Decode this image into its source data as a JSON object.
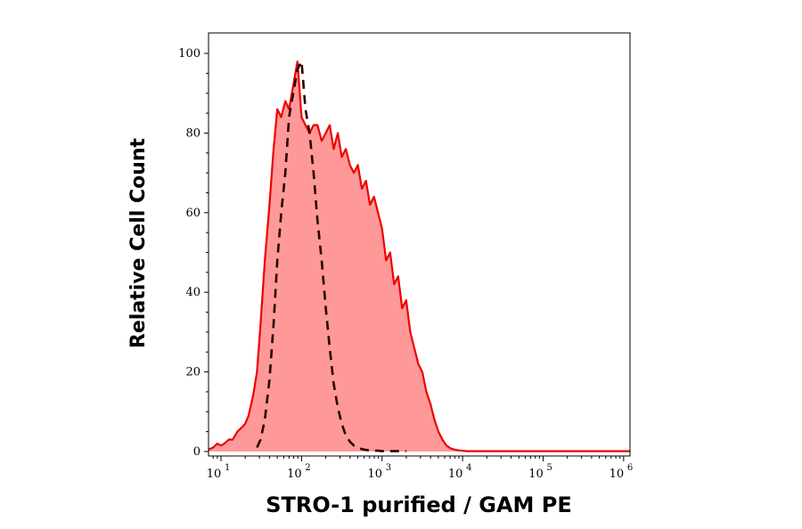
{
  "chart_data": {
    "type": "area",
    "xlabel": "STRO-1 purified / GAM PE",
    "ylabel": "Relative Cell Count",
    "x_scale": "log",
    "xlim": [
      7,
      1200000
    ],
    "ylim": [
      0,
      105
    ],
    "x_ticks": [
      {
        "value": 10,
        "base": "10",
        "exp": "1"
      },
      {
        "value": 100,
        "base": "10",
        "exp": "2"
      },
      {
        "value": 1000,
        "base": "10",
        "exp": "3"
      },
      {
        "value": 10000,
        "base": "10",
        "exp": "4"
      },
      {
        "value": 100000,
        "base": "10",
        "exp": "5"
      },
      {
        "value": 1000000,
        "base": "10",
        "exp": "6"
      }
    ],
    "y_ticks": [
      0,
      20,
      40,
      60,
      80,
      100
    ],
    "grid": false,
    "series": [
      {
        "style": "filled solid",
        "color": "#ee0000",
        "fill": "#ff9999",
        "x": [
          7,
          8,
          9,
          10,
          11,
          12.5,
          14,
          16,
          18,
          20,
          22,
          25,
          28,
          31,
          35,
          40,
          45,
          50,
          56,
          63,
          70,
          79,
          89,
          100,
          112,
          126,
          141,
          158,
          178,
          200,
          224,
          251,
          282,
          316,
          355,
          398,
          447,
          501,
          562,
          631,
          708,
          794,
          891,
          1000,
          1122,
          1259,
          1413,
          1585,
          1778,
          1995,
          2239,
          2512,
          2818,
          3162,
          3548,
          3981,
          4467,
          5012,
          5623,
          6310,
          7079,
          7943,
          8913,
          10000,
          11220,
          12589,
          15000,
          20000,
          50000,
          100000,
          500000,
          1000000,
          1200000
        ],
        "y": [
          0.5,
          1,
          2,
          1.5,
          2,
          3,
          3,
          5,
          6,
          7,
          9,
          14,
          20,
          32,
          48,
          62,
          76,
          86,
          84,
          88,
          86,
          92,
          98,
          84,
          82,
          80,
          82,
          82,
          78,
          80,
          82,
          76,
          80,
          74,
          76,
          72,
          70,
          72,
          66,
          68,
          62,
          64,
          60,
          56,
          48,
          50,
          42,
          44,
          36,
          38,
          30,
          26,
          22,
          20,
          15,
          12,
          8,
          5,
          3,
          1.5,
          0.8,
          0.5,
          0.3,
          0.2,
          0.1,
          0.1,
          0.1,
          0.1,
          0.1,
          0.1,
          0.1,
          0.1,
          0.1
        ]
      },
      {
        "style": "dashed",
        "color": "#2a0000",
        "x": [
          28,
          31,
          35,
          40,
          45,
          50,
          56,
          63,
          70,
          79,
          89,
          100,
          112,
          126,
          141,
          158,
          178,
          200,
          224,
          251,
          282,
          316,
          355,
          398,
          447,
          501,
          562,
          631,
          708,
          794,
          891,
          1000,
          1122,
          1259,
          1413,
          1585,
          1778,
          2000
        ],
        "y": [
          1,
          3,
          8,
          18,
          32,
          48,
          60,
          70,
          84,
          90,
          96,
          98,
          86,
          80,
          70,
          58,
          48,
          36,
          26,
          17,
          11,
          7,
          4,
          2.5,
          1.5,
          1,
          0.6,
          0.4,
          0.3,
          0.2,
          0.2,
          0.1,
          0.1,
          0.1,
          0.1,
          0.1,
          0.1,
          0.1
        ]
      }
    ]
  }
}
